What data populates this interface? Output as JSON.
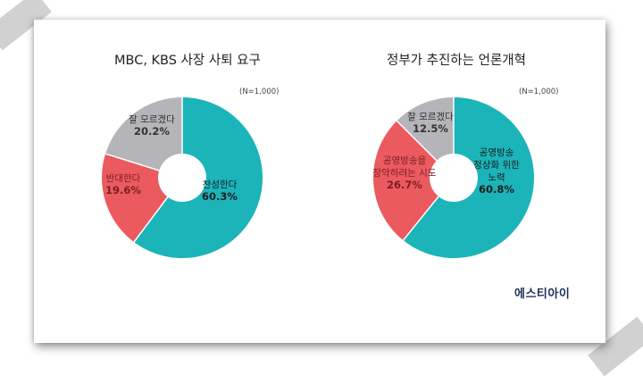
{
  "brand": "에스티아이",
  "chart_data": [
    {
      "type": "pie",
      "title": "MBC, KBS 사장 사퇴 요구",
      "note": "(N=1,000)",
      "hole": true,
      "slices": [
        {
          "label": "찬성한다",
          "value": 60.3,
          "value_text": "60.3%",
          "color": "#1ab4b9"
        },
        {
          "label": "반대한다",
          "value": 19.6,
          "value_text": "19.6%",
          "color": "#ea5a5f"
        },
        {
          "label": "잘 모르겠다",
          "value": 20.2,
          "value_text": "20.2%",
          "color": "#b4b4b9"
        }
      ]
    },
    {
      "type": "pie",
      "title": "정부가 추진하는 언론개혁",
      "note": "(N=1,000)",
      "hole": true,
      "slices": [
        {
          "label": "공영방송 정상화 위한 노력",
          "value": 60.8,
          "value_text": "60.8%",
          "color": "#1ab4b9"
        },
        {
          "label": "공영방송을 장악하려는 시도",
          "value": 26.7,
          "value_text": "26.7%",
          "color": "#ea5a5f"
        },
        {
          "label": "잘 모르겠다",
          "value": 12.5,
          "value_text": "12.5%",
          "color": "#b4b4b9"
        }
      ]
    }
  ]
}
